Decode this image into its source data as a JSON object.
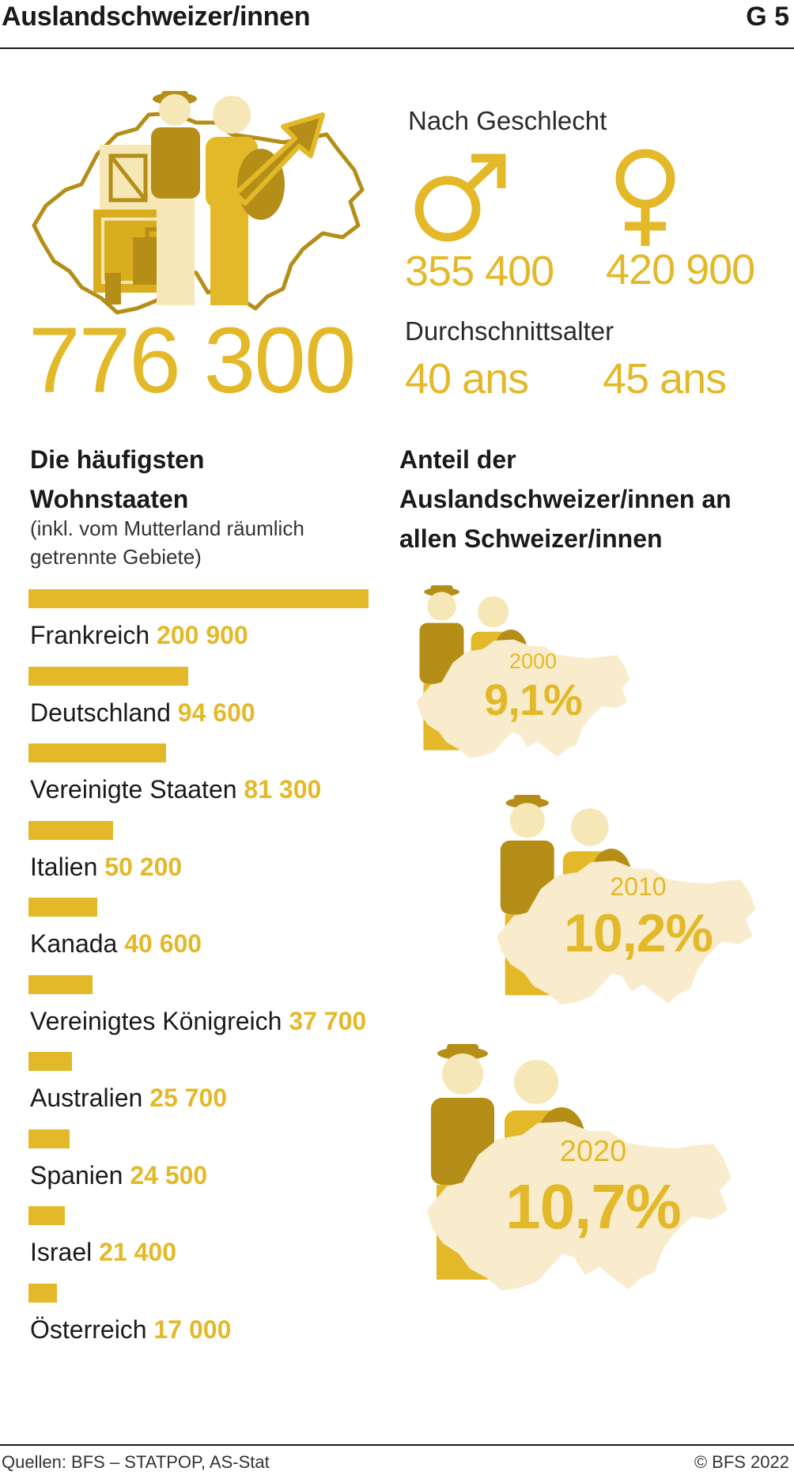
{
  "header": {
    "title": "Auslandschweizer/innen",
    "figure_no": "G 5"
  },
  "total": "776 300",
  "gender": {
    "heading": "Nach Geschlecht",
    "male_value": "355 400",
    "female_value": "420 900"
  },
  "age": {
    "heading": "Durchschnittsalter",
    "male_value": "40 ans",
    "female_value": "45 ans"
  },
  "colors": {
    "gold": "#e3b92a",
    "dark_gold": "#b48e17",
    "light": "#f6e7b6",
    "pale": "#f8eccc"
  },
  "chart_data": [
    {
      "type": "bar",
      "title": "Die häufigsten Wohnstaaten",
      "subtitle": "(inkl. vom Mutterland räumlich getrennte Gebiete)",
      "categories": [
        "Frankreich",
        "Deutschland",
        "Vereinigte Staaten",
        "Italien",
        "Kanada",
        "Vereinigtes Königreich",
        "Australien",
        "Spanien",
        "Israel",
        "Österreich"
      ],
      "values": [
        200900,
        94600,
        81300,
        50200,
        40600,
        37700,
        25700,
        24500,
        21400,
        17000
      ],
      "value_labels": [
        "200 900",
        "94 600",
        "81 300",
        "50 200",
        "40 600",
        "37 700",
        "25 700",
        "24 500",
        "21 400",
        "17 000"
      ]
    },
    {
      "type": "table",
      "title": "Anteil der Auslandschweizer/innen an allen Schweizer/innen",
      "x": [
        "2000",
        "2010",
        "2020"
      ],
      "values": [
        9.1,
        10.2,
        10.7
      ],
      "value_labels": [
        "9,1%",
        "10,2%",
        "10,7%"
      ]
    }
  ],
  "footer": {
    "source": "Quellen: BFS – STATPOP, AS-Stat",
    "copyright": "© BFS 2022"
  }
}
